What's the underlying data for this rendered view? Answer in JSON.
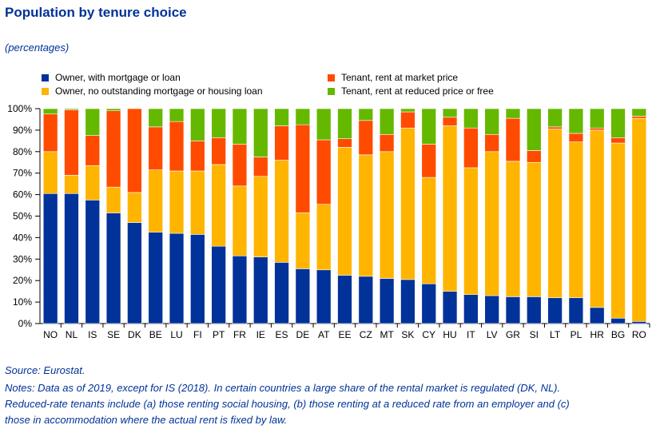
{
  "title": "Population by tenure choice",
  "subtitle": "(percentages)",
  "source": "Source: Eurostat.",
  "notes": [
    "Notes: Data as of 2019, except for IS (2018). In certain countries a large share of the rental market is regulated (DK, NL).",
    "Reduced-rate tenants include (a) those renting social housing, (b) those renting at a reduced rate from an employer and (c)",
    "those in accommodation where the actual rent is fixed by law."
  ],
  "colors": {
    "owner_mortgage": "#003299",
    "owner_outright": "#ffb400",
    "tenant_market": "#ff4b00",
    "tenant_reduced": "#65b800"
  },
  "chart_data": {
    "type": "bar",
    "stacked": true,
    "categories": [
      "NO",
      "NL",
      "IS",
      "SE",
      "DK",
      "BE",
      "LU",
      "FI",
      "PT",
      "FR",
      "IE",
      "ES",
      "DE",
      "AT",
      "EE",
      "CZ",
      "MT",
      "SK",
      "CY",
      "HU",
      "IT",
      "LV",
      "GR",
      "SI",
      "LT",
      "PL",
      "HR",
      "BG",
      "RO"
    ],
    "series": [
      {
        "name": "Owner, with mortgage or loan",
        "color": "#003299",
        "values": [
          60.5,
          60.5,
          57.5,
          51.5,
          47,
          42.5,
          42,
          41.5,
          36,
          31.5,
          31,
          28.5,
          25.5,
          25,
          22.5,
          22,
          21,
          20.5,
          18.5,
          15,
          13.5,
          13,
          12.5,
          12.5,
          12,
          12,
          7.5,
          2.5,
          1
        ]
      },
      {
        "name": "Owner, no outstanding mortgage or housing loan",
        "color": "#ffb400",
        "values": [
          19.5,
          8.5,
          16,
          12,
          14,
          29,
          29,
          29.5,
          38,
          32.5,
          37.5,
          47.5,
          26,
          30.5,
          59.5,
          56.5,
          59,
          70.5,
          49.5,
          77,
          59,
          67,
          63,
          62.5,
          78.5,
          72.5,
          82.5,
          81.5,
          94.5
        ]
      },
      {
        "name": "Tenant, rent at market price",
        "color": "#ff4b00",
        "values": [
          17.5,
          30.5,
          14,
          35.5,
          39,
          20,
          23,
          14,
          12.5,
          19.5,
          9,
          16,
          41,
          30,
          4,
          16,
          8,
          7.5,
          15.5,
          4,
          18.5,
          8,
          20,
          5.5,
          1,
          4,
          1,
          2.5,
          1
        ]
      },
      {
        "name": "Tenant, rent at reduced price or free",
        "color": "#65b800",
        "values": [
          2.5,
          0.5,
          12.5,
          1,
          0,
          8.5,
          6,
          15,
          13.5,
          16.5,
          22.5,
          8,
          7.5,
          14.5,
          14,
          5.5,
          12,
          1.5,
          16.5,
          4,
          9,
          12,
          4.5,
          19.5,
          8.5,
          11.5,
          9,
          13.5,
          3.5
        ]
      }
    ],
    "ylim": [
      0,
      100
    ],
    "yticks": [
      "0%",
      "10%",
      "20%",
      "30%",
      "40%",
      "50%",
      "60%",
      "70%",
      "80%",
      "90%",
      "100%"
    ],
    "legend_placement": "top"
  }
}
